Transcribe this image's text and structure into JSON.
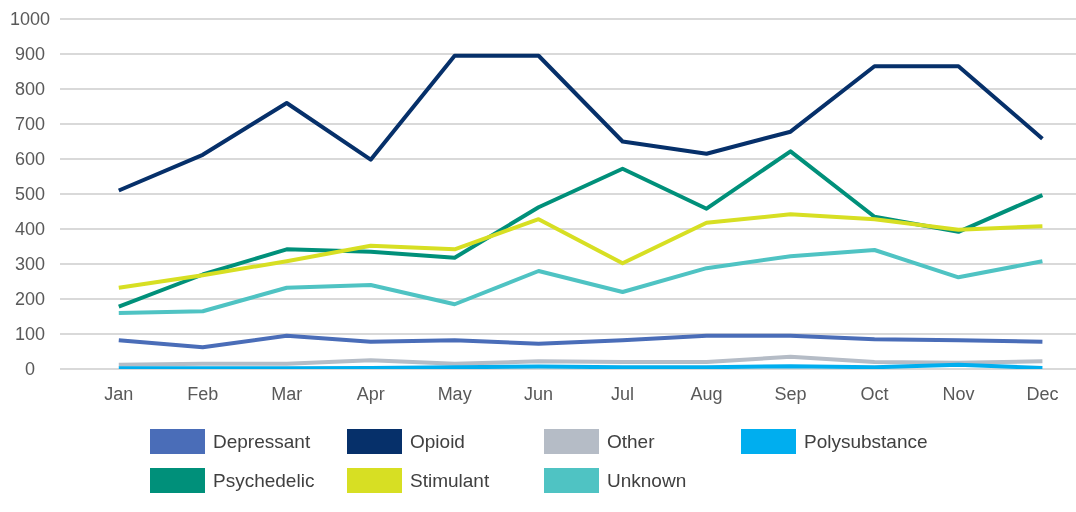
{
  "chart_data": {
    "type": "line",
    "categories": [
      "Jan",
      "Feb",
      "Mar",
      "Apr",
      "May",
      "Jun",
      "Jul",
      "Aug",
      "Sep",
      "Oct",
      "Nov",
      "Dec"
    ],
    "series": [
      {
        "name": "Depressant",
        "color": "#4a6db8",
        "values": [
          82,
          62,
          95,
          78,
          82,
          72,
          82,
          95,
          95,
          85,
          82,
          78
        ]
      },
      {
        "name": "Opioid",
        "color": "#06306a",
        "values": [
          510,
          612,
          760,
          598,
          895,
          895,
          650,
          615,
          678,
          865,
          865,
          658
        ]
      },
      {
        "name": "Other",
        "color": "#b5bcc6",
        "values": [
          12,
          15,
          15,
          25,
          15,
          22,
          20,
          20,
          35,
          20,
          18,
          22
        ]
      },
      {
        "name": "Polysubstance",
        "color": "#00aeef",
        "values": [
          2,
          2,
          2,
          3,
          5,
          7,
          5,
          5,
          8,
          5,
          12,
          3
        ]
      },
      {
        "name": "Psychedelic",
        "color": "#00907a",
        "values": [
          178,
          270,
          342,
          335,
          318,
          462,
          572,
          458,
          622,
          435,
          392,
          497
        ]
      },
      {
        "name": "Stimulant",
        "color": "#d7df23",
        "values": [
          232,
          268,
          308,
          352,
          342,
          428,
          302,
          418,
          442,
          428,
          398,
          408
        ]
      },
      {
        "name": "Unknown",
        "color": "#4fc3c3",
        "values": [
          160,
          165,
          232,
          240,
          185,
          280,
          220,
          288,
          322,
          340,
          262,
          308
        ]
      }
    ],
    "ylim": [
      0,
      1000
    ],
    "yticks": [
      0,
      100,
      200,
      300,
      400,
      500,
      600,
      700,
      800,
      900,
      1000
    ],
    "grid": "y",
    "legend": "bottom",
    "marker": "none",
    "line_style": "solid"
  }
}
